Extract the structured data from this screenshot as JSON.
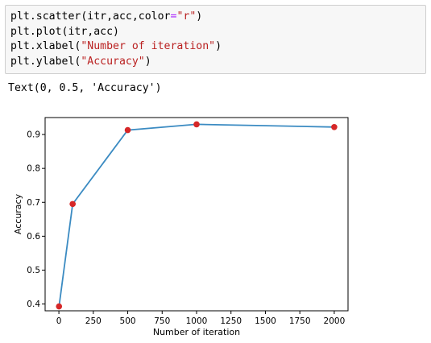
{
  "cell": {
    "code_lines": [
      [
        {
          "t": "plt.scatter(itr,acc,color",
          "c": "pun"
        },
        {
          "t": "=",
          "c": "kw"
        },
        {
          "t": "\"r\"",
          "c": "str"
        },
        {
          "t": ")",
          "c": "pun"
        }
      ],
      [
        {
          "t": "plt.plot(itr,acc)",
          "c": "pun"
        }
      ],
      [
        {
          "t": "plt.xlabel(",
          "c": "pun"
        },
        {
          "t": "\"Number of iteration\"",
          "c": "str"
        },
        {
          "t": ")",
          "c": "pun"
        }
      ],
      [
        {
          "t": "plt.ylabel(",
          "c": "pun"
        },
        {
          "t": "\"Accuracy\"",
          "c": "str"
        },
        {
          "t": ")",
          "c": "pun"
        }
      ]
    ],
    "output_text": "Text(0, 0.5, 'Accuracy')"
  },
  "colors": {
    "line": "#3b8bc2",
    "marker": "#d62728",
    "cell_bg": "#f7f7f7",
    "cell_border": "#cfcfcf"
  },
  "chart_data": {
    "type": "line",
    "title": "",
    "xlabel": "Number of iteration",
    "ylabel": "Accuracy",
    "xlim": [
      -100,
      2100
    ],
    "ylim": [
      0.38,
      0.95
    ],
    "x_ticks": [
      0,
      250,
      500,
      750,
      1000,
      1250,
      1500,
      1750,
      2000
    ],
    "y_ticks": [
      0.4,
      0.5,
      0.6,
      0.7,
      0.8,
      0.9
    ],
    "y_tick_labels": [
      "0.4",
      "0.5",
      "0.6",
      "0.7",
      "0.8",
      "0.9"
    ],
    "grid": false,
    "series": [
      {
        "x": [
          1,
          100,
          500,
          1000,
          2000
        ],
        "y": [
          0.393,
          0.695,
          0.913,
          0.93,
          0.922
        ]
      }
    ],
    "scatter_overlay": true
  }
}
